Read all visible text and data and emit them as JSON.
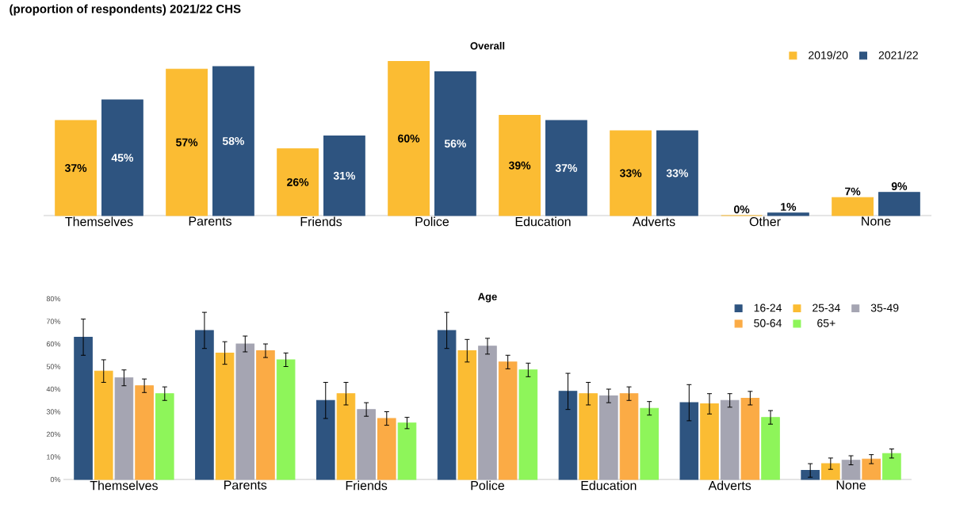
{
  "chart_data": [
    {
      "type": "bar",
      "title": "Overall",
      "annotations": [
        "(proportion of respondents) 2021/22 CHS"
      ],
      "categories": [
        "Themselves",
        "Parents",
        "Friends",
        "Police",
        "Education",
        "Adverts",
        "Other",
        "None"
      ],
      "legend": "top right",
      "grid": false,
      "series": [
        {
          "name": "2019/20",
          "color": "#fbbc33",
          "values": [
            37,
            57,
            26,
            60,
            39,
            33,
            0,
            7
          ],
          "value_labels": [
            "37%",
            "57%",
            "26%",
            "60%",
            "39%",
            "33%",
            "0%",
            "7%"
          ]
        },
        {
          "name": "2021/22",
          "color": "#2e5480",
          "values": [
            45,
            58,
            31,
            56,
            37,
            33,
            1,
            9
          ],
          "value_labels": [
            "45%",
            "58%",
            "31%",
            "56%",
            "37%",
            "33%",
            "1%",
            "9%"
          ]
        }
      ]
    },
    {
      "type": "bar",
      "title": "Age",
      "categories": [
        "Themselves",
        "Parents",
        "Friends",
        "Police",
        "Education",
        "Adverts",
        "None"
      ],
      "ylim": [
        0,
        80
      ],
      "yticks": [
        {
          "value": 0,
          "label": "0%"
        },
        {
          "value": 10,
          "label": "10%"
        },
        {
          "value": 20,
          "label": "20%"
        },
        {
          "value": 30,
          "label": "30%"
        },
        {
          "value": 40,
          "label": "40%"
        },
        {
          "value": 50,
          "label": "50%"
        },
        {
          "value": 60,
          "label": "60%"
        },
        {
          "value": 70,
          "label": "70%"
        },
        {
          "value": 80,
          "label": "80%"
        }
      ],
      "legend": "top right",
      "grid": false,
      "series": [
        {
          "name": "16-24",
          "color": "#2e5480",
          "values": [
            63,
            66,
            35,
            66,
            39,
            34,
            4
          ],
          "errors": [
            8,
            8,
            8,
            8,
            8,
            8,
            3
          ]
        },
        {
          "name": "25-34",
          "color": "#fbbc33",
          "values": [
            48,
            56,
            38,
            57,
            38,
            33.5,
            7
          ],
          "errors": [
            5,
            5,
            5,
            5,
            5,
            4.5,
            2.5
          ]
        },
        {
          "name": "35-49",
          "color": "#a5a5b2",
          "values": [
            45,
            60,
            31,
            59,
            37,
            35,
            8.5
          ],
          "errors": [
            3.5,
            3.5,
            3,
            3.5,
            3,
            3,
            2
          ]
        },
        {
          "name": "50-64",
          "color": "#fbab45",
          "values": [
            41.5,
            57,
            27,
            52,
            38,
            36,
            9
          ],
          "errors": [
            3,
            3,
            3,
            3,
            3,
            3,
            2
          ]
        },
        {
          "name": "65+",
          "color": "#8ef55a",
          "values": [
            38,
            53,
            25,
            48.5,
            31.5,
            27.5,
            11.5
          ],
          "errors": [
            3,
            3,
            2.5,
            3,
            3,
            3,
            2
          ]
        }
      ]
    }
  ]
}
